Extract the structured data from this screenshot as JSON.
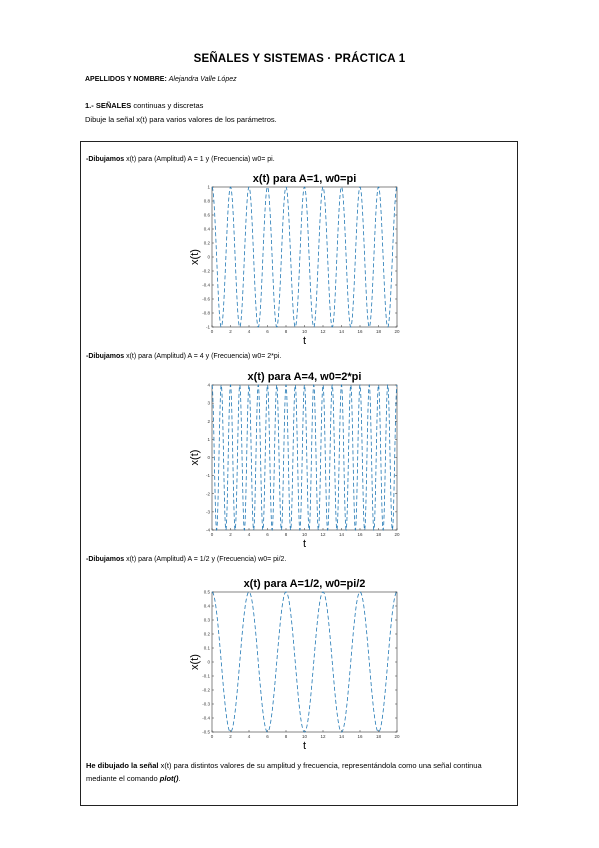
{
  "header": {
    "title": "SEÑALES Y SISTEMAS · PRÁCTICA 1",
    "author_label": "APELLIDOS Y NOMBRE:",
    "author_name": "Alejandra Valle López"
  },
  "section": {
    "number": "1.- SEÑALES",
    "heading": "continuas y discretas",
    "instruction": "Dibuje la señal x(t) para varios valores de los parámetros."
  },
  "plots": [
    {
      "caption_bold": "-Dibujamos",
      "caption_rest": " x(t) para (Amplitud) A = 1 y (Frecuencia) w0= pi.",
      "chart_data": {
        "type": "line",
        "title": "x(t) para A=1, w0=pi",
        "xlabel": "t",
        "ylabel": "x(t)",
        "function": "A*cos(w0*t)",
        "amplitude": 1,
        "omega": 3.14159,
        "xlim": [
          0,
          20
        ],
        "ylim": [
          -1,
          1
        ],
        "xticks": [
          "0",
          "2",
          "4",
          "6",
          "8",
          "10",
          "12",
          "14",
          "16",
          "18",
          "20"
        ],
        "yticks": [
          "1",
          "0.8",
          "0.6",
          "0.4",
          "0.2",
          "0",
          "-0.2",
          "-0.4",
          "-0.6",
          "-0.8",
          "-1"
        ],
        "line_color": "#1f77b4",
        "dashed": true
      }
    },
    {
      "caption_bold": "-Dibujamos",
      "caption_rest": " x(t) para (Amplitud) A = 4 y (Frecuencia) w0= 2*pi.",
      "chart_data": {
        "type": "line",
        "title": "x(t) para A=4, w0=2*pi",
        "xlabel": "t",
        "ylabel": "x(t)",
        "function": "A*cos(w0*t)",
        "amplitude": 4,
        "omega": 6.28319,
        "xlim": [
          0,
          20
        ],
        "ylim": [
          -4,
          4
        ],
        "xticks": [
          "0",
          "2",
          "4",
          "6",
          "8",
          "10",
          "12",
          "14",
          "16",
          "18",
          "20"
        ],
        "yticks": [
          "4",
          "3",
          "2",
          "1",
          "0",
          "-1",
          "-2",
          "-3",
          "-4"
        ],
        "line_color": "#1f77b4",
        "dashed": true
      }
    },
    {
      "caption_bold": "-Dibujamos",
      "caption_rest": " x(t) para (Amplitud) A = 1/2 y (Frecuencia) w0= pi/2.",
      "chart_data": {
        "type": "line",
        "title": "x(t) para A=1/2, w0=pi/2",
        "xlabel": "t",
        "ylabel": "x(t)",
        "function": "A*cos(w0*t)",
        "amplitude": 0.5,
        "omega": 1.5708,
        "xlim": [
          0,
          20
        ],
        "ylim": [
          -0.5,
          0.5
        ],
        "xticks": [
          "0",
          "2",
          "4",
          "6",
          "8",
          "10",
          "12",
          "14",
          "16",
          "18",
          "20"
        ],
        "yticks": [
          "0.5",
          "0.4",
          "0.3",
          "0.2",
          "0.1",
          "0",
          "-0.1",
          "-0.2",
          "-0.3",
          "-0.4",
          "-0.5"
        ],
        "line_color": "#1f77b4",
        "dashed": true
      }
    }
  ],
  "conclusion": {
    "bold_start": "He dibujado la señal",
    "text": " x(t) para distintos valores de su amplitud y frecuencia, representándola como una señal continua mediante el comando ",
    "command": "plot()",
    "end": "."
  }
}
